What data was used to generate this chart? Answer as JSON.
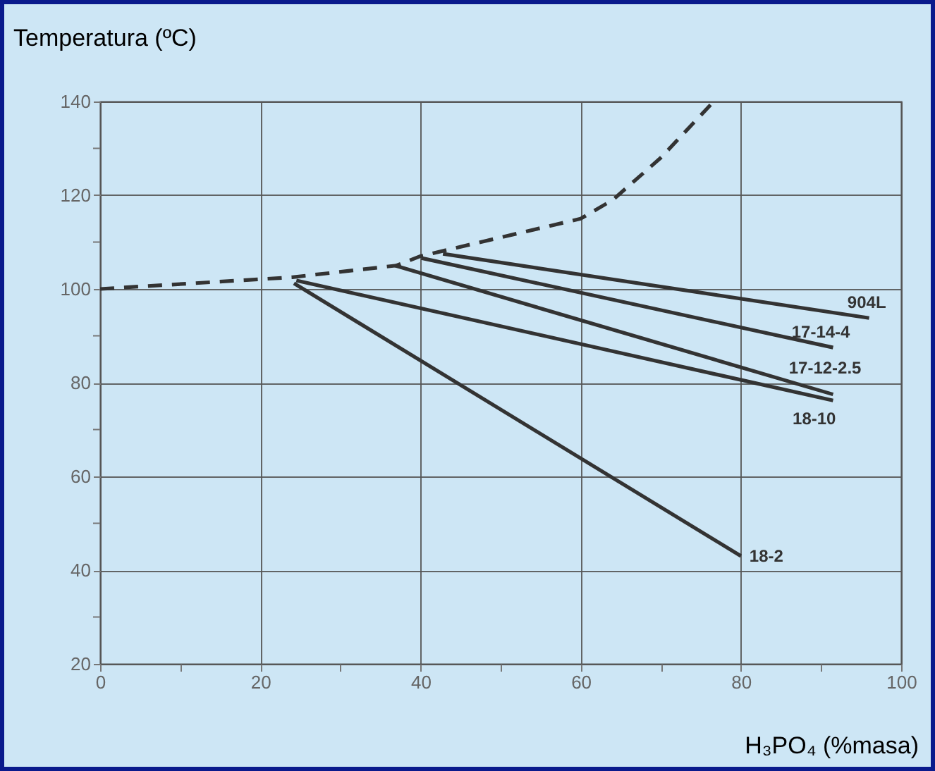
{
  "chart_data": {
    "type": "line",
    "xlabel": "H₃PO₄ (%masa)",
    "ylabel": "Temperatura (ºC)",
    "xlim": [
      0,
      100
    ],
    "ylim": [
      20,
      140
    ],
    "xticks": [
      0,
      {
        "value": 10,
        "label": null
      },
      20,
      {
        "value": 30,
        "label": null
      },
      40,
      {
        "value": 50,
        "label": null
      },
      60,
      {
        "value": 70,
        "label": null
      },
      80,
      {
        "value": 90,
        "label": null
      },
      100
    ],
    "yticks": [
      20,
      {
        "value": 30,
        "label": null
      },
      40,
      {
        "value": 50,
        "label": null
      },
      60,
      {
        "value": 70,
        "label": null
      },
      80,
      {
        "value": 90,
        "label": null
      },
      100,
      {
        "value": 110,
        "label": null
      },
      120,
      {
        "value": 130,
        "label": null
      },
      140
    ],
    "grid": true,
    "marker": "none",
    "legend": false,
    "series": [
      {
        "color": "#333333",
        "line_style": "dashed",
        "x": [
          0,
          24,
          37,
          40,
          50,
          60,
          64,
          70,
          76.6
        ],
        "values": [
          100,
          102.5,
          105,
          107,
          111,
          115,
          119,
          128,
          140
        ]
      },
      {
        "name": "904L",
        "color": "#333333",
        "line_style": "solid",
        "x": [
          42.8,
          96
        ],
        "values": [
          107.5,
          93.8
        ]
      },
      {
        "name": "17-14-4",
        "color": "#333333",
        "line_style": "solid",
        "x": [
          40.1,
          91.5
        ],
        "values": [
          106.6,
          87.5
        ]
      },
      {
        "name": "17-12-2.5",
        "color": "#333333",
        "line_style": "solid",
        "x": [
          36.8,
          91.5
        ],
        "values": [
          105,
          77.5
        ]
      },
      {
        "name": "18-10",
        "color": "#333333",
        "line_style": "solid",
        "x": [
          24.5,
          91.5
        ],
        "values": [
          101.8,
          76.2
        ]
      },
      {
        "name": "18-2",
        "color": "#333333",
        "line_style": "solid",
        "x": [
          24.2,
          80
        ],
        "values": [
          101.2,
          43
        ]
      }
    ]
  }
}
